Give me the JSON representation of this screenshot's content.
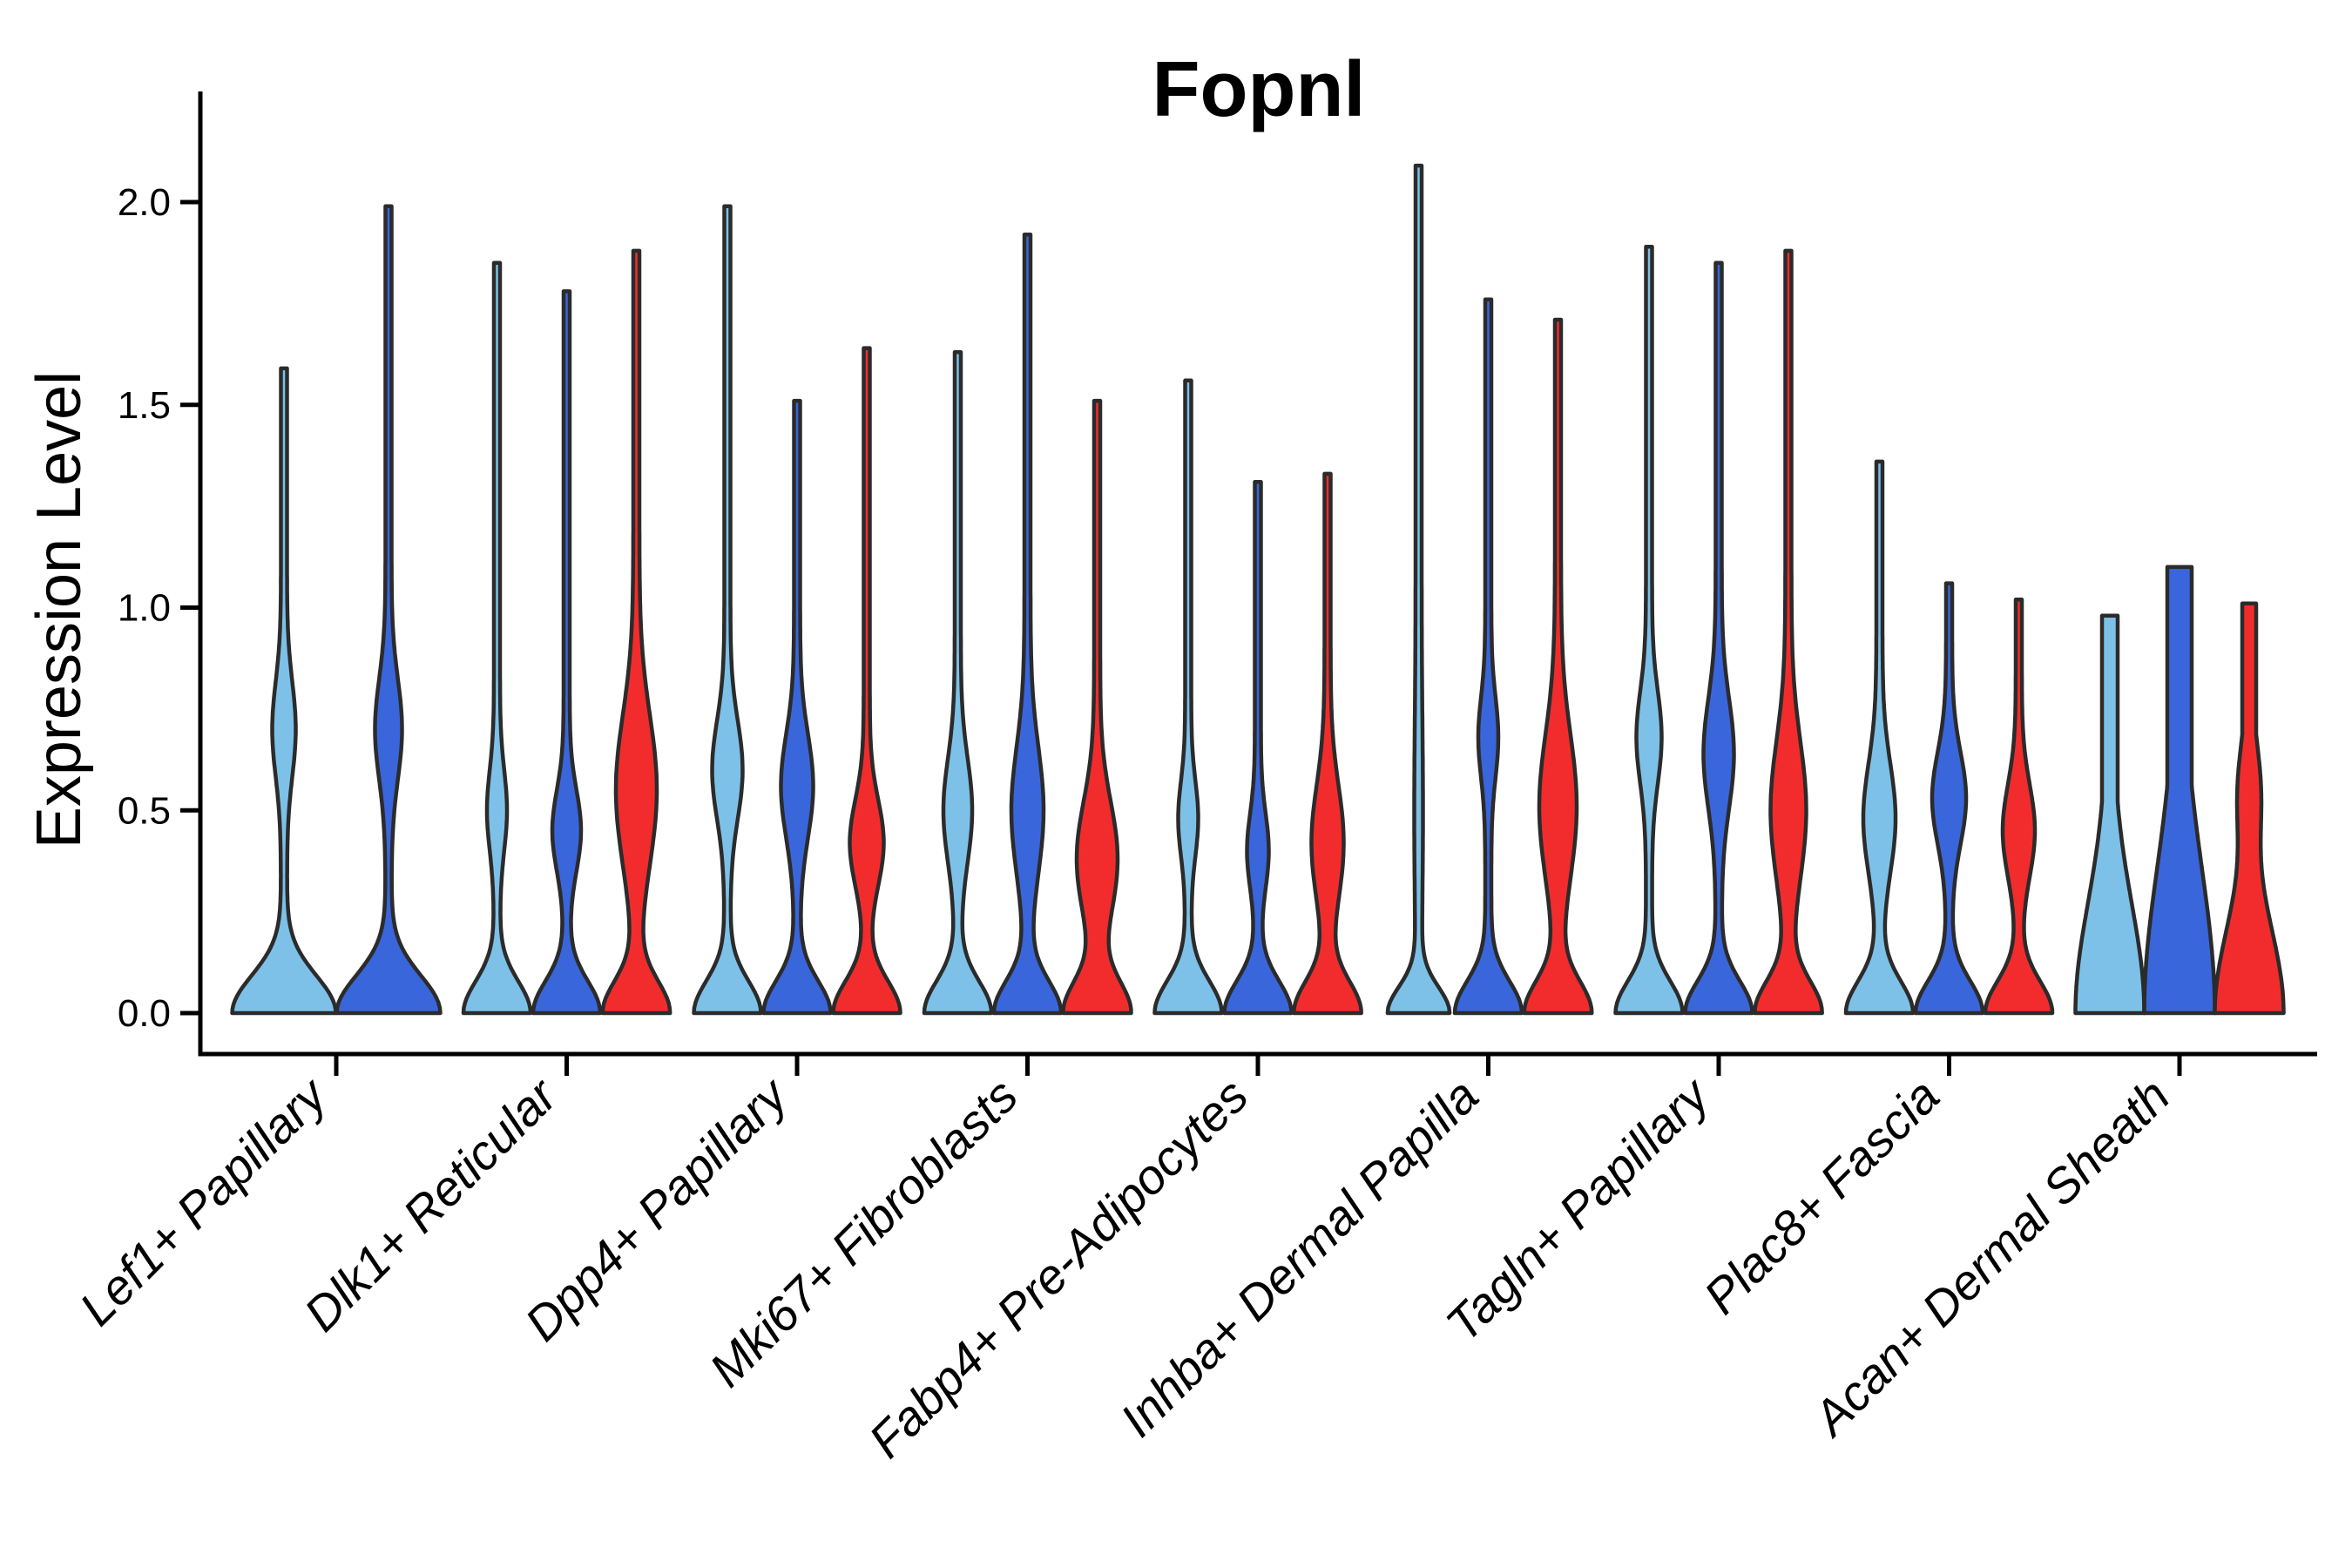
{
  "chart_data": {
    "type": "violin",
    "title": "Fopnl",
    "ylabel": "Expression Level",
    "xlabel": "",
    "ylim": [
      0,
      2.27
    ],
    "grid": false,
    "legend": null,
    "background_color": "#ffffff",
    "outline_color": "#2B2B2B",
    "axis_color": "#000000",
    "yticks": {
      "values": [
        0,
        0.5,
        1.0,
        1.5,
        2.0
      ],
      "labels": [
        "0.0",
        "0.5",
        "1.0",
        "1.5",
        "2.0"
      ]
    },
    "series": [
      {
        "id": "light_blue",
        "color": "#7DC1E8"
      },
      {
        "id": "dark_blue",
        "color": "#3A66DB"
      },
      {
        "id": "red",
        "color": "#F22C2C"
      }
    ],
    "categories": [
      "Lef1+ Papillary",
      "Dlk1+ Reticular",
      "Dpp4+ Papillary",
      "Mki67+ Fibroblasts",
      "Fabp4+ Pre-Adipocytes",
      "Inhba+ Dermal Papilla",
      "Tagln+ Papillary",
      "Plac8+ Fascia",
      "Acan+ Dermal Sheath"
    ],
    "groups": [
      {
        "category": "Lef1+ Papillary",
        "violins": [
          {
            "series": "light_blue",
            "max": 1.59,
            "base_hw": 56,
            "base_sigma": 0.13,
            "bulge": {
              "center": 0.7,
              "sigma": 0.165,
              "amp": 10
            }
          },
          {
            "series": "dark_blue",
            "max": 1.99,
            "base_hw": 56,
            "base_sigma": 0.13,
            "bulge": {
              "center": 0.7,
              "sigma": 0.175,
              "amp": 12
            }
          }
        ]
      },
      {
        "category": "Dlk1+ Reticular",
        "violins": [
          {
            "series": "light_blue",
            "max": 1.85,
            "base_hw": 35,
            "base_sigma": 0.11,
            "bulge": {
              "center": 0.5,
              "sigma": 0.14,
              "amp": 8
            }
          },
          {
            "series": "dark_blue",
            "max": 1.78,
            "base_hw": 35,
            "base_sigma": 0.11,
            "bulge": {
              "center": 0.45,
              "sigma": 0.14,
              "amp": 13
            }
          },
          {
            "series": "red",
            "max": 1.88,
            "base_hw": 35,
            "base_sigma": 0.11,
            "bulge": {
              "center": 0.55,
              "sigma": 0.26,
              "amp": 20
            }
          }
        ]
      },
      {
        "category": "Dpp4+ Papillary",
        "violins": [
          {
            "series": "light_blue",
            "max": 1.99,
            "base_hw": 35,
            "base_sigma": 0.11,
            "bulge": {
              "center": 0.6,
              "sigma": 0.17,
              "amp": 14
            }
          },
          {
            "series": "dark_blue",
            "max": 1.51,
            "base_hw": 35,
            "base_sigma": 0.11,
            "bulge": {
              "center": 0.56,
              "sigma": 0.18,
              "amp": 15
            }
          },
          {
            "series": "red",
            "max": 1.64,
            "base_hw": 35,
            "base_sigma": 0.11,
            "bulge": {
              "center": 0.42,
              "sigma": 0.15,
              "amp": 16
            }
          }
        ]
      },
      {
        "category": "Mki67+ Fibroblasts",
        "violins": [
          {
            "series": "light_blue",
            "max": 1.63,
            "base_hw": 35,
            "base_sigma": 0.11,
            "bulge": {
              "center": 0.5,
              "sigma": 0.18,
              "amp": 13
            }
          },
          {
            "series": "dark_blue",
            "max": 1.92,
            "base_hw": 35,
            "base_sigma": 0.11,
            "bulge": {
              "center": 0.5,
              "sigma": 0.22,
              "amp": 15
            }
          },
          {
            "series": "red",
            "max": 1.51,
            "base_hw": 35,
            "base_sigma": 0.11,
            "bulge": {
              "center": 0.38,
              "sigma": 0.2,
              "amp": 20
            }
          }
        ]
      },
      {
        "category": "Fabp4+ Pre-Adipocytes",
        "violins": [
          {
            "series": "light_blue",
            "max": 1.56,
            "base_hw": 35,
            "base_sigma": 0.11,
            "bulge": {
              "center": 0.48,
              "sigma": 0.13,
              "amp": 8
            }
          },
          {
            "series": "dark_blue",
            "max": 1.31,
            "base_hw": 35,
            "base_sigma": 0.11,
            "bulge": {
              "center": 0.4,
              "sigma": 0.13,
              "amp": 9
            }
          },
          {
            "series": "red",
            "max": 1.33,
            "base_hw": 35,
            "base_sigma": 0.11,
            "bulge": {
              "center": 0.42,
              "sigma": 0.2,
              "amp": 15
            }
          }
        ]
      },
      {
        "category": "Inhba+ Dermal Papilla",
        "violins": [
          {
            "series": "light_blue",
            "max": 2.09,
            "base_hw": 32,
            "base_sigma": 0.09,
            "bulge": {
              "center": 0.5,
              "sigma": 0.3,
              "amp": 1.5
            }
          },
          {
            "series": "dark_blue",
            "max": 1.76,
            "base_hw": 35,
            "base_sigma": 0.11,
            "bulge": {
              "center": 0.68,
              "sigma": 0.14,
              "amp": 8
            }
          },
          {
            "series": "red",
            "max": 1.71,
            "base_hw": 35,
            "base_sigma": 0.11,
            "bulge": {
              "center": 0.51,
              "sigma": 0.25,
              "amp": 18
            }
          }
        ]
      },
      {
        "category": "Tagln+ Papillary",
        "violins": [
          {
            "series": "light_blue",
            "max": 1.89,
            "base_hw": 35,
            "base_sigma": 0.11,
            "bulge": {
              "center": 0.68,
              "sigma": 0.16,
              "amp": 11
            }
          },
          {
            "series": "dark_blue",
            "max": 1.85,
            "base_hw": 35,
            "base_sigma": 0.11,
            "bulge": {
              "center": 0.64,
              "sigma": 0.19,
              "amp": 14
            }
          },
          {
            "series": "red",
            "max": 1.88,
            "base_hw": 35,
            "base_sigma": 0.11,
            "bulge": {
              "center": 0.5,
              "sigma": 0.24,
              "amp": 17
            }
          }
        ]
      },
      {
        "category": "Plac8+ Fascia",
        "violins": [
          {
            "series": "light_blue",
            "max": 1.36,
            "base_hw": 35,
            "base_sigma": 0.11,
            "bulge": {
              "center": 0.48,
              "sigma": 0.19,
              "amp": 15
            }
          },
          {
            "series": "dark_blue",
            "max": 1.06,
            "base_hw": 35,
            "base_sigma": 0.11,
            "bulge": {
              "center": 0.53,
              "sigma": 0.16,
              "amp": 16
            }
          },
          {
            "series": "red",
            "max": 1.02,
            "base_hw": 35,
            "base_sigma": 0.11,
            "bulge": {
              "center": 0.45,
              "sigma": 0.16,
              "amp": 15
            }
          }
        ]
      },
      {
        "category": "Acan+ Dermal Sheath",
        "violins": [
          {
            "series": "light_blue",
            "max": 0.98,
            "truncated": true,
            "top_hw": 9,
            "base_hw": 36,
            "base_sigma": 0.38,
            "bulge": null
          },
          {
            "series": "dark_blue",
            "max": 1.1,
            "truncated": true,
            "top_hw": 14,
            "base_hw": 37,
            "base_sigma": 0.5,
            "bulge": null
          },
          {
            "series": "red",
            "max": 1.01,
            "truncated": true,
            "top_hw": 8,
            "base_hw": 36,
            "base_sigma": 0.3,
            "bulge": {
              "center": 0.55,
              "sigma": 0.16,
              "amp": 9
            }
          }
        ]
      }
    ]
  }
}
